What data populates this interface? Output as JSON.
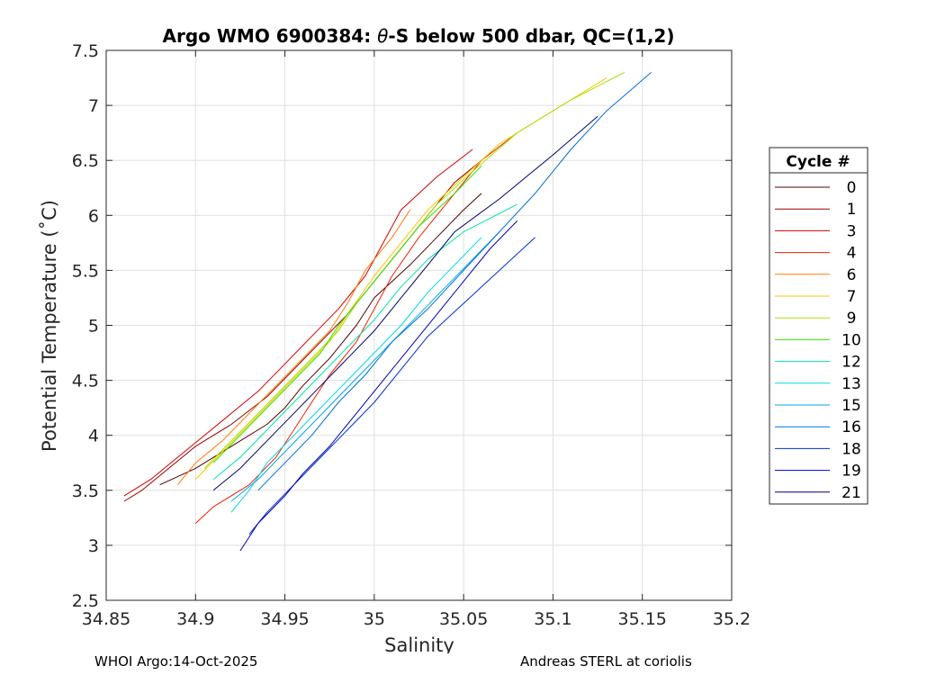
{
  "chart_data": {
    "type": "line",
    "title_prefix": "Argo WMO 6900384: ",
    "title_symbol": "θ",
    "title_suffix": "-S below 500 dbar,  QC=(1,2)",
    "xlabel": "Salinity",
    "ylabel_prefix": "Potential Temperature (",
    "ylabel_degree": "˚",
    "ylabel_suffix": "C)",
    "xlim": [
      34.85,
      35.2
    ],
    "ylim": [
      2.5,
      7.5
    ],
    "xticks": [
      34.85,
      34.9,
      34.95,
      35,
      35.05,
      35.1,
      35.15,
      35.2
    ],
    "xtick_labels": [
      "34.85",
      "34.9",
      "34.95",
      "35",
      "35.05",
      "35.1",
      "35.15",
      "35.2"
    ],
    "yticks": [
      2.5,
      3,
      3.5,
      4,
      4.5,
      5,
      5.5,
      6,
      6.5,
      7,
      7.5
    ],
    "ytick_labels": [
      "2.5",
      "3",
      "3.5",
      "4",
      "4.5",
      "5",
      "5.5",
      "6",
      "6.5",
      "7",
      "7.5"
    ],
    "grid": true,
    "legend_title": "Cycle #",
    "legend_position": "outside-right",
    "series": [
      {
        "name": "0",
        "color": "#500000",
        "points": [
          [
            34.88,
            3.55
          ],
          [
            34.9,
            3.7
          ],
          [
            34.92,
            3.9
          ],
          [
            34.94,
            4.1
          ],
          [
            34.95,
            4.25
          ],
          [
            34.96,
            4.45
          ],
          [
            34.975,
            4.7
          ],
          [
            34.99,
            5.0
          ],
          [
            35.0,
            5.25
          ],
          [
            35.02,
            5.55
          ],
          [
            35.035,
            5.8
          ],
          [
            35.05,
            6.05
          ],
          [
            35.06,
            6.2
          ]
        ]
      },
      {
        "name": "1",
        "color": "#9a0000",
        "points": [
          [
            34.86,
            3.4
          ],
          [
            34.87,
            3.5
          ],
          [
            34.885,
            3.7
          ],
          [
            34.9,
            3.9
          ],
          [
            34.92,
            4.1
          ],
          [
            34.94,
            4.35
          ],
          [
            34.955,
            4.6
          ],
          [
            34.97,
            4.85
          ],
          [
            34.985,
            5.1
          ],
          [
            35.0,
            5.4
          ],
          [
            35.015,
            5.7
          ],
          [
            35.03,
            6.0
          ],
          [
            35.045,
            6.3
          ],
          [
            35.06,
            6.5
          ]
        ]
      },
      {
        "name": "3",
        "color": "#d40000",
        "points": [
          [
            34.86,
            3.45
          ],
          [
            34.875,
            3.6
          ],
          [
            34.89,
            3.8
          ],
          [
            34.905,
            4.0
          ],
          [
            34.92,
            4.2
          ],
          [
            34.935,
            4.4
          ],
          [
            34.95,
            4.65
          ],
          [
            34.965,
            4.9
          ],
          [
            34.98,
            5.15
          ],
          [
            34.995,
            5.45
          ],
          [
            35.005,
            5.75
          ],
          [
            35.015,
            6.05
          ],
          [
            35.035,
            6.35
          ],
          [
            35.055,
            6.6
          ]
        ]
      },
      {
        "name": "4",
        "color": "#f22000",
        "points": [
          [
            34.9,
            3.2
          ],
          [
            34.91,
            3.35
          ],
          [
            34.93,
            3.55
          ],
          [
            34.945,
            3.8
          ],
          [
            34.955,
            4.05
          ],
          [
            34.965,
            4.3
          ],
          [
            34.975,
            4.55
          ],
          [
            34.99,
            4.85
          ],
          [
            35.0,
            5.15
          ],
          [
            35.01,
            5.45
          ],
          [
            35.025,
            5.8
          ],
          [
            35.04,
            6.1
          ],
          [
            35.06,
            6.5
          ],
          [
            35.08,
            6.75
          ]
        ]
      },
      {
        "name": "6",
        "color": "#ff7a00",
        "points": [
          [
            34.89,
            3.55
          ],
          [
            34.9,
            3.75
          ],
          [
            34.915,
            3.95
          ],
          [
            34.93,
            4.2
          ],
          [
            34.945,
            4.45
          ],
          [
            34.96,
            4.7
          ],
          [
            34.975,
            4.95
          ],
          [
            34.985,
            5.2
          ],
          [
            34.995,
            5.5
          ],
          [
            35.01,
            5.8
          ],
          [
            35.02,
            6.05
          ]
        ]
      },
      {
        "name": "7",
        "color": "#f5c800",
        "points": [
          [
            34.9,
            3.6
          ],
          [
            34.915,
            3.85
          ],
          [
            34.93,
            4.1
          ],
          [
            34.945,
            4.35
          ],
          [
            34.96,
            4.6
          ],
          [
            34.975,
            4.85
          ],
          [
            34.985,
            5.1
          ],
          [
            35.0,
            5.45
          ],
          [
            35.015,
            5.75
          ],
          [
            35.03,
            6.05
          ],
          [
            35.05,
            6.35
          ],
          [
            35.07,
            6.65
          ],
          [
            35.1,
            6.95
          ],
          [
            35.13,
            7.25
          ]
        ]
      },
      {
        "name": "9",
        "color": "#a6e000",
        "points": [
          [
            34.905,
            3.7
          ],
          [
            34.92,
            3.95
          ],
          [
            34.935,
            4.2
          ],
          [
            34.95,
            4.45
          ],
          [
            34.965,
            4.7
          ],
          [
            34.98,
            4.95
          ],
          [
            34.99,
            5.2
          ],
          [
            35.005,
            5.5
          ],
          [
            35.02,
            5.8
          ],
          [
            35.035,
            6.1
          ],
          [
            35.055,
            6.4
          ],
          [
            35.08,
            6.75
          ],
          [
            35.11,
            7.05
          ],
          [
            35.14,
            7.3
          ]
        ]
      },
      {
        "name": "10",
        "color": "#38e000",
        "points": [
          [
            34.91,
            3.75
          ],
          [
            34.925,
            4.0
          ],
          [
            34.94,
            4.25
          ],
          [
            34.955,
            4.5
          ],
          [
            34.97,
            4.75
          ],
          [
            34.98,
            5.0
          ],
          [
            34.995,
            5.3
          ],
          [
            35.01,
            5.6
          ],
          [
            35.025,
            5.9
          ],
          [
            35.045,
            6.2
          ],
          [
            35.06,
            6.45
          ]
        ]
      },
      {
        "name": "12",
        "color": "#00e6a0",
        "points": [
          [
            34.91,
            3.6
          ],
          [
            34.925,
            3.8
          ],
          [
            34.94,
            4.05
          ],
          [
            34.955,
            4.3
          ],
          [
            34.97,
            4.55
          ],
          [
            34.985,
            4.8
          ],
          [
            35.0,
            5.05
          ],
          [
            35.015,
            5.35
          ],
          [
            35.03,
            5.6
          ],
          [
            35.05,
            5.85
          ],
          [
            35.08,
            6.1
          ]
        ]
      },
      {
        "name": "13",
        "color": "#00d8e8",
        "points": [
          [
            34.92,
            3.3
          ],
          [
            34.93,
            3.5
          ],
          [
            34.94,
            3.75
          ],
          [
            34.955,
            4.0
          ],
          [
            34.97,
            4.25
          ],
          [
            34.985,
            4.5
          ],
          [
            35.0,
            4.75
          ],
          [
            35.015,
            5.0
          ],
          [
            35.03,
            5.3
          ],
          [
            35.045,
            5.55
          ],
          [
            35.06,
            5.8
          ]
        ]
      },
      {
        "name": "15",
        "color": "#00a8e0",
        "points": [
          [
            34.92,
            3.4
          ],
          [
            34.935,
            3.6
          ],
          [
            34.95,
            3.85
          ],
          [
            34.965,
            4.1
          ],
          [
            34.98,
            4.35
          ],
          [
            34.995,
            4.6
          ],
          [
            35.01,
            4.85
          ],
          [
            35.025,
            5.1
          ],
          [
            35.04,
            5.35
          ],
          [
            35.055,
            5.6
          ],
          [
            35.07,
            5.85
          ]
        ]
      },
      {
        "name": "16",
        "color": "#0070d8",
        "points": [
          [
            34.935,
            3.5
          ],
          [
            34.95,
            3.75
          ],
          [
            34.965,
            4.0
          ],
          [
            34.98,
            4.3
          ],
          [
            34.995,
            4.55
          ],
          [
            35.01,
            4.85
          ],
          [
            35.03,
            5.15
          ],
          [
            35.05,
            5.5
          ],
          [
            35.07,
            5.85
          ],
          [
            35.09,
            6.2
          ],
          [
            35.11,
            6.6
          ],
          [
            35.13,
            6.95
          ],
          [
            35.155,
            7.3
          ]
        ]
      },
      {
        "name": "18",
        "color": "#0030d0",
        "points": [
          [
            34.93,
            3.1
          ],
          [
            34.94,
            3.3
          ],
          [
            34.955,
            3.55
          ],
          [
            34.97,
            3.8
          ],
          [
            34.985,
            4.05
          ],
          [
            35.0,
            4.3
          ],
          [
            35.015,
            4.6
          ],
          [
            35.03,
            4.9
          ],
          [
            35.05,
            5.2
          ],
          [
            35.07,
            5.5
          ],
          [
            35.09,
            5.8
          ]
        ]
      },
      {
        "name": "19",
        "color": "#0000b8",
        "points": [
          [
            34.925,
            2.95
          ],
          [
            34.935,
            3.2
          ],
          [
            34.95,
            3.45
          ],
          [
            34.96,
            3.65
          ],
          [
            34.975,
            3.9
          ],
          [
            34.99,
            4.2
          ],
          [
            35.005,
            4.5
          ],
          [
            35.02,
            4.8
          ],
          [
            35.035,
            5.1
          ],
          [
            35.05,
            5.4
          ],
          [
            35.065,
            5.7
          ],
          [
            35.08,
            5.95
          ]
        ]
      },
      {
        "name": "21",
        "color": "#00006e",
        "points": [
          [
            34.91,
            3.5
          ],
          [
            34.925,
            3.7
          ],
          [
            34.94,
            3.95
          ],
          [
            34.955,
            4.2
          ],
          [
            34.97,
            4.45
          ],
          [
            34.985,
            4.7
          ],
          [
            35.0,
            4.95
          ],
          [
            35.015,
            5.25
          ],
          [
            35.03,
            5.55
          ],
          [
            35.045,
            5.85
          ],
          [
            35.07,
            6.15
          ],
          [
            35.1,
            6.55
          ],
          [
            35.125,
            6.9
          ]
        ]
      }
    ]
  },
  "footer": {
    "left": "WHOI Argo:14-Oct-2025",
    "right": "Andreas STERL at coriolis"
  }
}
